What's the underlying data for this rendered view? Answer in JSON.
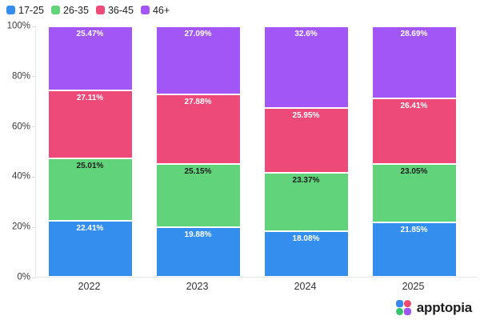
{
  "chart_data": {
    "type": "bar",
    "stacked": true,
    "title": "",
    "categories": [
      "2022",
      "2023",
      "2024",
      "2025"
    ],
    "series": [
      {
        "name": "17-25",
        "color": "#338EEE",
        "label_text_color": "#FFFFFF",
        "values": [
          22.41,
          19.88,
          18.08,
          21.85
        ]
      },
      {
        "name": "26-35",
        "color": "#61D37A",
        "label_text_color": "#1C1C1C",
        "values": [
          25.01,
          25.15,
          23.37,
          23.05
        ]
      },
      {
        "name": "36-45",
        "color": "#EE4A79",
        "label_text_color": "#FFFFFF",
        "values": [
          27.11,
          27.88,
          25.95,
          26.41
        ]
      },
      {
        "name": "46+",
        "color": "#A156F5",
        "label_text_color": "#FFFFFF",
        "values": [
          25.47,
          27.09,
          32.6,
          28.69
        ]
      }
    ],
    "value_suffix": "%",
    "y_axis": {
      "ticks": [
        "0%",
        "20%",
        "40%",
        "60%",
        "80%",
        "100%"
      ],
      "min": 0,
      "max": 100
    },
    "legend_position": "top-left",
    "grid": false
  },
  "branding": {
    "logo_text": "apptopia",
    "petal_colors": {
      "top_left": "#3988EE",
      "top_right": "#EF4B6F",
      "bottom_left": "#37C36B",
      "bottom_right": "#9F55F2"
    }
  }
}
